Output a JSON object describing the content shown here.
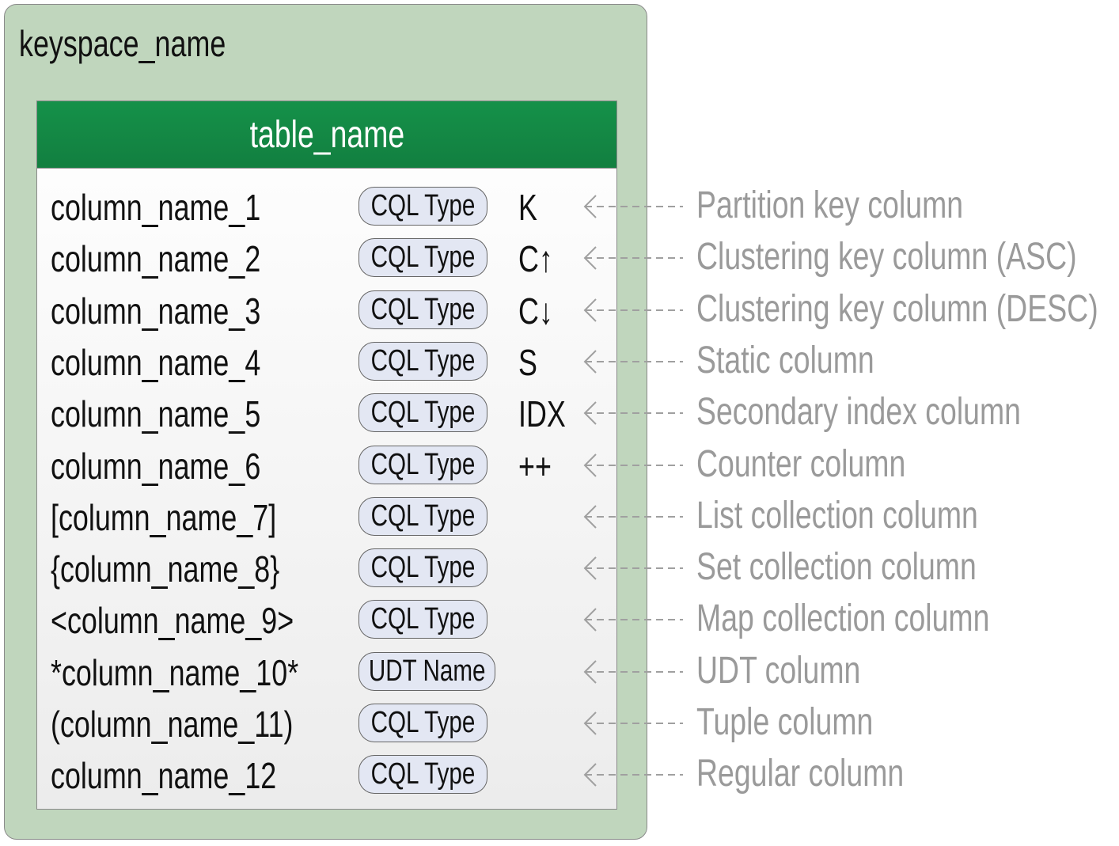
{
  "keyspace": {
    "name": "keyspace_name",
    "color": "#c0d6bd"
  },
  "table": {
    "name": "table_name",
    "header_color": "#148d4a"
  },
  "rows": [
    {
      "column": "column_name_1",
      "type": "CQL Type",
      "marker": "K",
      "legend": "Partition key column"
    },
    {
      "column": "column_name_2",
      "type": "CQL Type",
      "marker": "C↑",
      "legend": "Clustering key column (ASC)"
    },
    {
      "column": "column_name_3",
      "type": "CQL Type",
      "marker": "C↓",
      "legend": "Clustering key column (DESC)"
    },
    {
      "column": "column_name_4",
      "type": "CQL Type",
      "marker": "S",
      "legend": "Static column"
    },
    {
      "column": "column_name_5",
      "type": "CQL Type",
      "marker": "IDX",
      "legend": "Secondary index column"
    },
    {
      "column": "column_name_6",
      "type": "CQL Type",
      "marker": "++",
      "legend": "Counter column"
    },
    {
      "column": "[column_name_7]",
      "type": "CQL Type",
      "marker": "",
      "legend": "List collection column"
    },
    {
      "column": "{column_name_8}",
      "type": "CQL Type",
      "marker": "",
      "legend": "Set collection column"
    },
    {
      "column": "<column_name_9>",
      "type": "CQL Type",
      "marker": "",
      "legend": "Map collection column"
    },
    {
      "column": "*column_name_10*",
      "type": "UDT Name",
      "marker": "",
      "legend": "UDT column"
    },
    {
      "column": "(column_name_11)",
      "type": "CQL Type",
      "marker": "",
      "legend": "Tuple column"
    },
    {
      "column": "column_name_12",
      "type": "CQL Type",
      "marker": "",
      "legend": "Regular column"
    }
  ]
}
